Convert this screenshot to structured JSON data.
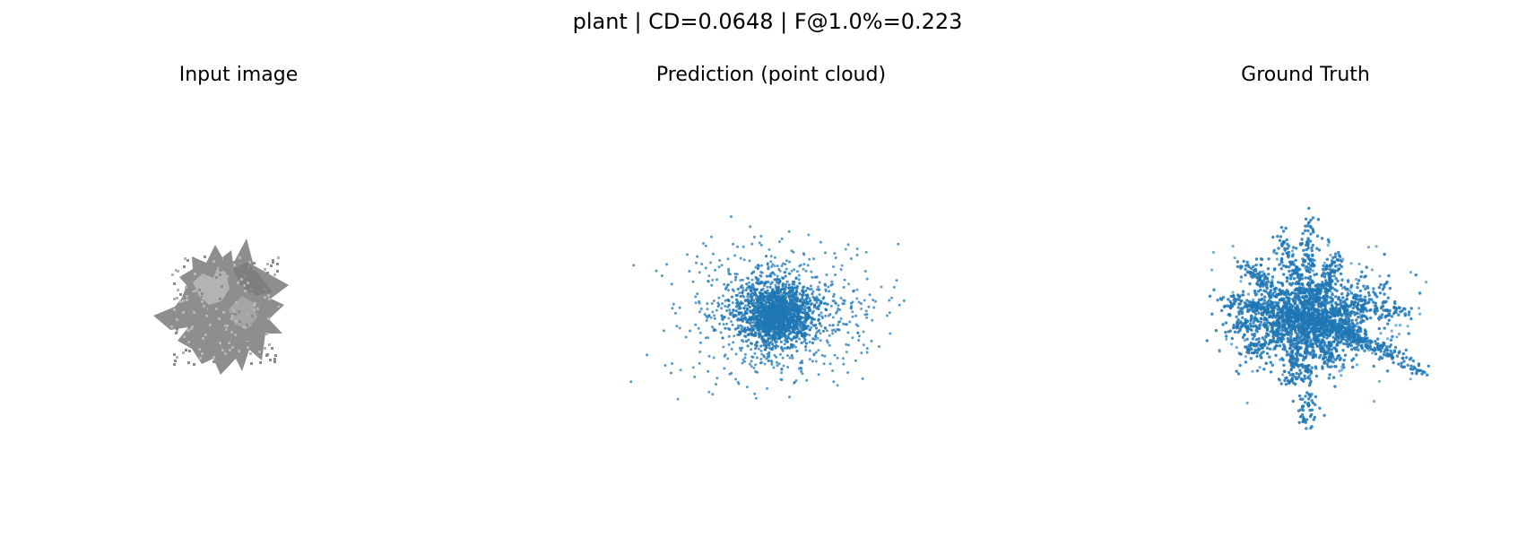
{
  "figure": {
    "title": "plant | CD=0.0648 | F@1.0%=0.223"
  },
  "panels": [
    {
      "id": "input",
      "title": "Input image",
      "content": "grayscale rendering of plant"
    },
    {
      "id": "prediction",
      "title": "Prediction (point cloud)",
      "content": "point cloud scatter"
    },
    {
      "id": "ground_truth",
      "title": "Ground Truth",
      "content": "point cloud scatter"
    }
  ],
  "colors": {
    "points": "#1f77b4",
    "input_dark": "#8c8c8c",
    "input_light": "#b4b4b4"
  }
}
